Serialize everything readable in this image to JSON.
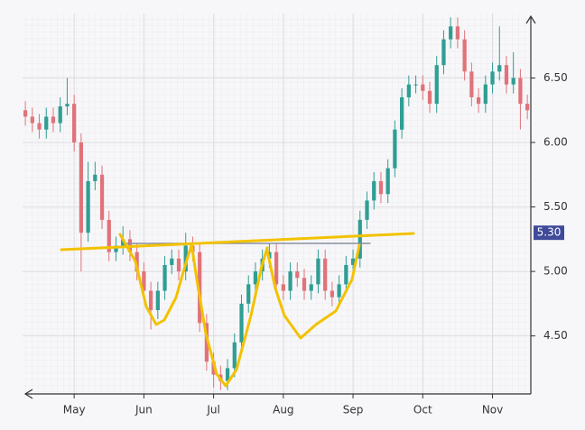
{
  "chart_data": {
    "type": "candlestick",
    "x": [
      4.3,
      4.4,
      4.5,
      4.6,
      4.7,
      4.8,
      4.9,
      5.0,
      5.1,
      5.2,
      5.3,
      5.4,
      5.5,
      5.6,
      5.7,
      5.8,
      5.9,
      6.0,
      6.1,
      6.2,
      6.3,
      6.4,
      6.5,
      6.6,
      6.7,
      6.8,
      6.9,
      7.0,
      7.1,
      7.2,
      7.3,
      7.4,
      7.5,
      7.6,
      7.7,
      7.8,
      7.9,
      8.0,
      8.1,
      8.2,
      8.3,
      8.4,
      8.5,
      8.6,
      8.7,
      8.8,
      8.9,
      9.0,
      9.1,
      9.2,
      9.3,
      9.4,
      9.5,
      9.6,
      9.7,
      9.8,
      9.9,
      10.0,
      10.1,
      10.2,
      10.3,
      10.4,
      10.5,
      10.6,
      10.7,
      10.8,
      10.9,
      11.0,
      11.1,
      11.2,
      11.3,
      11.4,
      11.5
    ],
    "open": [
      6.25,
      6.2,
      6.15,
      6.1,
      6.2,
      6.15,
      6.28,
      6.3,
      6.0,
      5.3,
      5.7,
      5.75,
      5.4,
      5.15,
      5.2,
      5.25,
      5.15,
      5.0,
      4.85,
      4.7,
      4.85,
      5.05,
      5.1,
      5.0,
      5.2,
      5.15,
      4.6,
      4.3,
      4.2,
      4.15,
      4.25,
      4.45,
      4.75,
      4.9,
      5.0,
      5.1,
      5.15,
      4.9,
      4.85,
      5.0,
      4.95,
      4.85,
      4.9,
      5.1,
      4.85,
      4.8,
      4.9,
      5.05,
      5.1,
      5.4,
      5.55,
      5.7,
      5.6,
      5.8,
      6.1,
      6.35,
      6.45,
      6.45,
      6.4,
      6.3,
      6.6,
      6.8,
      6.9,
      6.8,
      6.55,
      6.35,
      6.3,
      6.45,
      6.55,
      6.6,
      6.45,
      6.5,
      6.3
    ],
    "high": [
      6.32,
      6.27,
      6.22,
      6.27,
      6.27,
      6.35,
      6.5,
      6.37,
      6.07,
      5.85,
      5.85,
      5.82,
      5.47,
      5.27,
      5.35,
      5.32,
      5.22,
      5.07,
      4.92,
      4.92,
      5.12,
      5.17,
      5.17,
      5.3,
      5.27,
      5.22,
      4.67,
      4.37,
      4.27,
      4.32,
      4.52,
      4.82,
      4.97,
      5.07,
      5.17,
      5.22,
      5.22,
      4.97,
      5.07,
      5.07,
      5.02,
      4.97,
      5.17,
      5.17,
      4.92,
      4.97,
      5.12,
      5.17,
      5.47,
      5.62,
      5.77,
      5.77,
      5.87,
      6.17,
      6.42,
      6.52,
      6.52,
      6.52,
      6.47,
      6.67,
      6.87,
      6.97,
      6.97,
      6.87,
      6.62,
      6.42,
      6.52,
      6.62,
      6.9,
      6.67,
      6.7,
      6.57,
      6.37
    ],
    "low": [
      6.13,
      6.08,
      6.03,
      6.03,
      6.08,
      6.08,
      6.21,
      5.93,
      5.0,
      5.23,
      5.63,
      5.33,
      5.08,
      5.08,
      5.13,
      5.08,
      4.93,
      4.78,
      4.55,
      4.63,
      4.78,
      4.98,
      4.93,
      4.93,
      5.08,
      4.53,
      4.23,
      4.1,
      4.08,
      4.08,
      4.18,
      4.38,
      4.68,
      4.83,
      4.93,
      5.03,
      4.83,
      4.78,
      4.78,
      4.88,
      4.78,
      4.78,
      4.83,
      4.78,
      4.73,
      4.73,
      4.83,
      4.98,
      5.03,
      5.33,
      5.48,
      5.53,
      5.53,
      5.73,
      6.03,
      6.28,
      6.38,
      6.33,
      6.23,
      6.23,
      6.53,
      6.73,
      6.73,
      6.48,
      6.28,
      6.23,
      6.23,
      6.38,
      6.48,
      6.38,
      6.38,
      6.1,
      6.18
    ],
    "close": [
      6.2,
      6.15,
      6.1,
      6.2,
      6.15,
      6.28,
      6.3,
      6.0,
      5.3,
      5.7,
      5.75,
      5.4,
      5.15,
      5.2,
      5.25,
      5.15,
      5.0,
      4.85,
      4.7,
      4.85,
      5.05,
      5.1,
      5.0,
      5.2,
      5.15,
      4.6,
      4.3,
      4.2,
      4.15,
      4.25,
      4.45,
      4.75,
      4.9,
      5.0,
      5.1,
      5.15,
      4.9,
      4.85,
      5.0,
      4.95,
      4.85,
      4.9,
      5.1,
      4.85,
      4.8,
      4.9,
      5.05,
      5.1,
      5.4,
      5.55,
      5.7,
      5.6,
      5.8,
      6.1,
      6.35,
      6.45,
      6.45,
      6.4,
      6.3,
      6.6,
      6.8,
      6.9,
      6.8,
      6.55,
      6.35,
      6.3,
      6.45,
      6.55,
      6.6,
      6.45,
      6.5,
      6.3,
      6.25
    ],
    "up_color": "#2f9e94",
    "down_color": "#e0737a",
    "xlim": [
      4.26,
      11.55
    ],
    "xticks": [
      {
        "value": 5,
        "label": "May"
      },
      {
        "value": 6,
        "label": "Jun"
      },
      {
        "value": 7,
        "label": "Jul"
      },
      {
        "value": 8,
        "label": "Aug"
      },
      {
        "value": 9,
        "label": "Sep"
      },
      {
        "value": 10,
        "label": "Oct"
      },
      {
        "value": 11,
        "label": "Nov"
      }
    ],
    "ylim": [
      4.05,
      7.0
    ],
    "yticks": [
      {
        "value": 4.5,
        "label": "4.50"
      },
      {
        "value": 5,
        "label": "5.00"
      },
      {
        "value": 5.5,
        "label": "5.50"
      },
      {
        "value": 6,
        "label": "6.00"
      },
      {
        "value": 6.5,
        "label": "6.50"
      }
    ],
    "price_tag": {
      "value": 5.3,
      "label": "5.30",
      "color": "#3f4a9a"
    }
  }
}
